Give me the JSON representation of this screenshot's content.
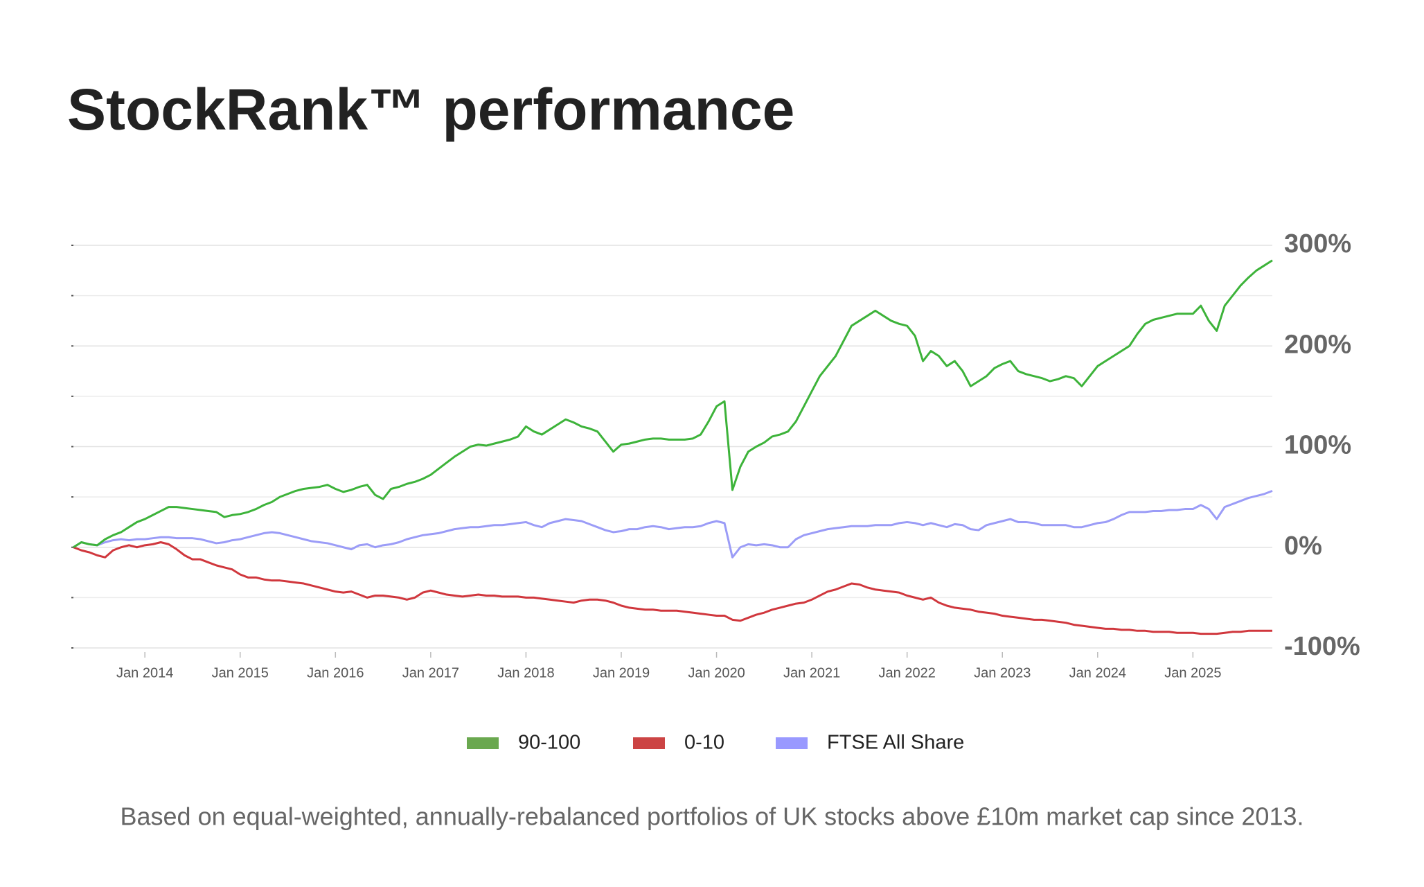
{
  "chart_data": {
    "type": "line",
    "title": "StockRank™ performance",
    "footnote": "Based on equal-weighted, annually-rebalanced portfolios of UK stocks above £10m market cap since 2013.",
    "x": [
      "Apr 2013",
      "May 2013",
      "Jun 2013",
      "Jul 2013",
      "Aug 2013",
      "Sep 2013",
      "Oct 2013",
      "Nov 2013",
      "Dec 2013",
      "Jan 2014",
      "Feb 2014",
      "Mar 2014",
      "Apr 2014",
      "May 2014",
      "Jun 2014",
      "Jul 2014",
      "Aug 2014",
      "Sep 2014",
      "Oct 2014",
      "Nov 2014",
      "Dec 2014",
      "Jan 2015",
      "Feb 2015",
      "Mar 2015",
      "Apr 2015",
      "May 2015",
      "Jun 2015",
      "Jul 2015",
      "Aug 2015",
      "Sep 2015",
      "Oct 2015",
      "Nov 2015",
      "Dec 2015",
      "Jan 2016",
      "Feb 2016",
      "Mar 2016",
      "Apr 2016",
      "May 2016",
      "Jun 2016",
      "Jul 2016",
      "Aug 2016",
      "Sep 2016",
      "Oct 2016",
      "Nov 2016",
      "Dec 2016",
      "Jan 2017",
      "Feb 2017",
      "Mar 2017",
      "Apr 2017",
      "May 2017",
      "Jun 2017",
      "Jul 2017",
      "Aug 2017",
      "Sep 2017",
      "Oct 2017",
      "Nov 2017",
      "Dec 2017",
      "Jan 2018",
      "Feb 2018",
      "Mar 2018",
      "Apr 2018",
      "May 2018",
      "Jun 2018",
      "Jul 2018",
      "Aug 2018",
      "Sep 2018",
      "Oct 2018",
      "Nov 2018",
      "Dec 2018",
      "Jan 2019",
      "Feb 2019",
      "Mar 2019",
      "Apr 2019",
      "May 2019",
      "Jun 2019",
      "Jul 2019",
      "Aug 2019",
      "Sep 2019",
      "Oct 2019",
      "Nov 2019",
      "Dec 2019",
      "Jan 2020",
      "Feb 2020",
      "Mar 2020",
      "Apr 2020",
      "May 2020",
      "Jun 2020",
      "Jul 2020",
      "Aug 2020",
      "Sep 2020",
      "Oct 2020",
      "Nov 2020",
      "Dec 2020",
      "Jan 2021",
      "Feb 2021",
      "Mar 2021",
      "Apr 2021",
      "May 2021",
      "Jun 2021",
      "Jul 2021",
      "Aug 2021",
      "Sep 2021",
      "Oct 2021",
      "Nov 2021",
      "Dec 2021",
      "Jan 2022",
      "Feb 2022",
      "Mar 2022",
      "Apr 2022",
      "May 2022",
      "Jun 2022",
      "Jul 2022",
      "Aug 2022",
      "Sep 2022",
      "Oct 2022",
      "Nov 2022",
      "Dec 2022",
      "Jan 2023",
      "Feb 2023",
      "Mar 2023",
      "Apr 2023",
      "May 2023",
      "Jun 2023",
      "Jul 2023",
      "Aug 2023",
      "Sep 2023",
      "Oct 2023",
      "Nov 2023",
      "Dec 2023",
      "Jan 2024",
      "Feb 2024",
      "Mar 2024",
      "Apr 2024",
      "May 2024",
      "Jun 2024",
      "Jul 2024",
      "Aug 2024",
      "Sep 2024",
      "Oct 2024",
      "Nov 2024",
      "Dec 2024",
      "Jan 2025",
      "Feb 2025",
      "Mar 2025",
      "Apr 2025",
      "May 2025",
      "Jun 2025",
      "Jul 2025",
      "Aug 2025",
      "Sep 2025",
      "Oct 2025",
      "Nov 2025"
    ],
    "xticks": [
      "Jan 2014",
      "Jan 2015",
      "Jan 2016",
      "Jan 2017",
      "Jan 2018",
      "Jan 2019",
      "Jan 2020",
      "Jan 2021",
      "Jan 2022",
      "Jan 2023",
      "Jan 2024",
      "Jan 2025"
    ],
    "ylim": [
      -100,
      300
    ],
    "yticks": [
      {
        "value": -100,
        "label": "-100%"
      },
      {
        "value": 0,
        "label": "0%"
      },
      {
        "value": 100,
        "label": "100%"
      },
      {
        "value": 200,
        "label": "200%"
      },
      {
        "value": 300,
        "label": "300%"
      }
    ],
    "minor_yticks": [
      -50,
      50,
      150,
      250
    ],
    "grid": true,
    "legend": "bottom",
    "series": [
      {
        "name": "90-100",
        "color": "#3db33a",
        "legend_color": "#6aa84f",
        "values": [
          0,
          5,
          3,
          2,
          8,
          12,
          15,
          20,
          25,
          28,
          32,
          36,
          40,
          40,
          39,
          38,
          37,
          36,
          35,
          30,
          32,
          33,
          35,
          38,
          42,
          45,
          50,
          53,
          56,
          58,
          59,
          60,
          62,
          58,
          55,
          57,
          60,
          62,
          52,
          48,
          58,
          60,
          63,
          65,
          68,
          72,
          78,
          84,
          90,
          95,
          100,
          102,
          101,
          103,
          105,
          107,
          110,
          120,
          115,
          112,
          117,
          122,
          127,
          124,
          120,
          118,
          115,
          105,
          95,
          102,
          103,
          105,
          107,
          108,
          108,
          107,
          107,
          107,
          108,
          112,
          125,
          140,
          145,
          57,
          80,
          95,
          100,
          104,
          110,
          112,
          115,
          125,
          140,
          155,
          170,
          180,
          190,
          205,
          220,
          225,
          230,
          235,
          230,
          225,
          222,
          220,
          210,
          185,
          195,
          190,
          180,
          185,
          175,
          160,
          165,
          170,
          178,
          182,
          185,
          175,
          172,
          170,
          168,
          165,
          167,
          170,
          168,
          160,
          170,
          180,
          185,
          190,
          195,
          200,
          212,
          222,
          226,
          228,
          230,
          232,
          232,
          232,
          240,
          225,
          215,
          240,
          250,
          260,
          268,
          275,
          280,
          285
        ]
      },
      {
        "name": "0-10",
        "color": "#d0373d",
        "legend_color": "#cc4444",
        "values": [
          0,
          -3,
          -5,
          -8,
          -10,
          -3,
          0,
          2,
          0,
          2,
          3,
          5,
          3,
          -2,
          -8,
          -12,
          -12,
          -15,
          -18,
          -20,
          -22,
          -27,
          -30,
          -30,
          -32,
          -33,
          -33,
          -34,
          -35,
          -36,
          -38,
          -40,
          -42,
          -44,
          -45,
          -44,
          -47,
          -50,
          -48,
          -48,
          -49,
          -50,
          -52,
          -50,
          -45,
          -43,
          -45,
          -47,
          -48,
          -49,
          -48,
          -47,
          -48,
          -48,
          -49,
          -49,
          -49,
          -50,
          -50,
          -51,
          -52,
          -53,
          -54,
          -55,
          -53,
          -52,
          -52,
          -53,
          -55,
          -58,
          -60,
          -61,
          -62,
          -62,
          -63,
          -63,
          -63,
          -64,
          -65,
          -66,
          -67,
          -68,
          -68,
          -72,
          -73,
          -70,
          -67,
          -65,
          -62,
          -60,
          -58,
          -56,
          -55,
          -52,
          -48,
          -44,
          -42,
          -39,
          -36,
          -37,
          -40,
          -42,
          -43,
          -44,
          -45,
          -48,
          -50,
          -52,
          -50,
          -55,
          -58,
          -60,
          -61,
          -62,
          -64,
          -65,
          -66,
          -68,
          -69,
          -70,
          -71,
          -72,
          -72,
          -73,
          -74,
          -75,
          -77,
          -78,
          -79,
          -80,
          -81,
          -81,
          -82,
          -82,
          -83,
          -83,
          -84,
          -84,
          -84,
          -85,
          -85,
          -85,
          -86,
          -86,
          -86,
          -85,
          -84,
          -84,
          -83,
          -83,
          -83,
          -83
        ]
      },
      {
        "name": "FTSE All Share",
        "color": "#9b9cf7",
        "legend_color": "#9999ff",
        "values": [
          0,
          5,
          3,
          2,
          5,
          7,
          8,
          7,
          8,
          8,
          9,
          10,
          10,
          9,
          9,
          9,
          8,
          6,
          4,
          5,
          7,
          8,
          10,
          12,
          14,
          15,
          14,
          12,
          10,
          8,
          6,
          5,
          4,
          2,
          0,
          -2,
          2,
          3,
          0,
          2,
          3,
          5,
          8,
          10,
          12,
          13,
          14,
          16,
          18,
          19,
          20,
          20,
          21,
          22,
          22,
          23,
          24,
          25,
          22,
          20,
          24,
          26,
          28,
          27,
          26,
          23,
          20,
          17,
          15,
          16,
          18,
          18,
          20,
          21,
          20,
          18,
          19,
          20,
          20,
          21,
          24,
          26,
          24,
          -10,
          0,
          3,
          2,
          3,
          2,
          0,
          0,
          8,
          12,
          14,
          16,
          18,
          19,
          20,
          21,
          21,
          21,
          22,
          22,
          22,
          24,
          25,
          24,
          22,
          24,
          22,
          20,
          23,
          22,
          18,
          17,
          22,
          24,
          26,
          28,
          25,
          25,
          24,
          22,
          22,
          22,
          22,
          20,
          20,
          22,
          24,
          25,
          28,
          32,
          35,
          35,
          35,
          36,
          36,
          37,
          37,
          38,
          38,
          42,
          38,
          28,
          40,
          43,
          46,
          49,
          51,
          53,
          56
        ]
      }
    ]
  }
}
